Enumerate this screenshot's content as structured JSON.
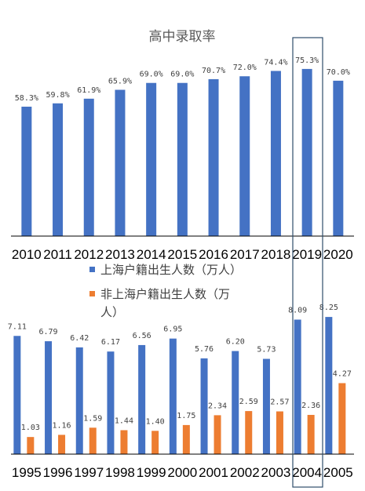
{
  "chart_data": [
    {
      "type": "bar",
      "title": "高中录取率",
      "categories": [
        "2010",
        "2011",
        "2012",
        "2013",
        "2014",
        "2015",
        "2016",
        "2017",
        "2018",
        "2019",
        "2020"
      ],
      "series": [
        {
          "values": [
            58.3,
            59.8,
            61.9,
            65.9,
            69.0,
            69.0,
            70.7,
            72.0,
            74.4,
            75.3,
            70.0
          ],
          "labels": [
            "58.3%",
            "59.8%",
            "61.9%",
            "65.9%",
            "69.0%",
            "69.0%",
            "70.7%",
            "72.0%",
            "74.4%",
            "75.3%",
            "70.0%"
          ],
          "color": "#4472C4"
        }
      ],
      "highlight": "2019"
    },
    {
      "type": "bar",
      "categories": [
        "1995",
        "1996",
        "1997",
        "1998",
        "1999",
        "2000",
        "2001",
        "2002",
        "2003",
        "2004",
        "2005"
      ],
      "legend_position": "top",
      "series": [
        {
          "name": "上海户籍出生人数（万人）",
          "values": [
            7.11,
            6.79,
            6.42,
            6.17,
            6.56,
            6.95,
            5.76,
            6.2,
            5.73,
            8.09,
            8.25
          ],
          "labels": [
            "7.11",
            "6.79",
            "6.42",
            "6.17",
            "6.56",
            "6.95",
            "5.76",
            "6.20",
            "5.73",
            "8.09",
            "8.25"
          ],
          "color": "#4472C4"
        },
        {
          "name": "非上海户籍出生人数（万人）",
          "values": [
            1.03,
            1.16,
            1.59,
            1.44,
            1.4,
            1.75,
            2.34,
            2.59,
            2.57,
            2.36,
            4.27
          ],
          "labels": [
            "1.03",
            "1.16",
            "1.59",
            "1.44",
            "1.40",
            "1.75",
            "2.34",
            "2.59",
            "2.57",
            "2.36",
            "4.27"
          ],
          "color": "#ED7D31"
        }
      ],
      "highlight": "2004"
    }
  ],
  "legend": {
    "line1": "上海户籍出生人数（万人）",
    "line2a": "非上海户籍出生人数（万",
    "line2b": "人）"
  },
  "colors": {
    "highlight_box": "#2E4D6B",
    "axis": "#000000"
  }
}
